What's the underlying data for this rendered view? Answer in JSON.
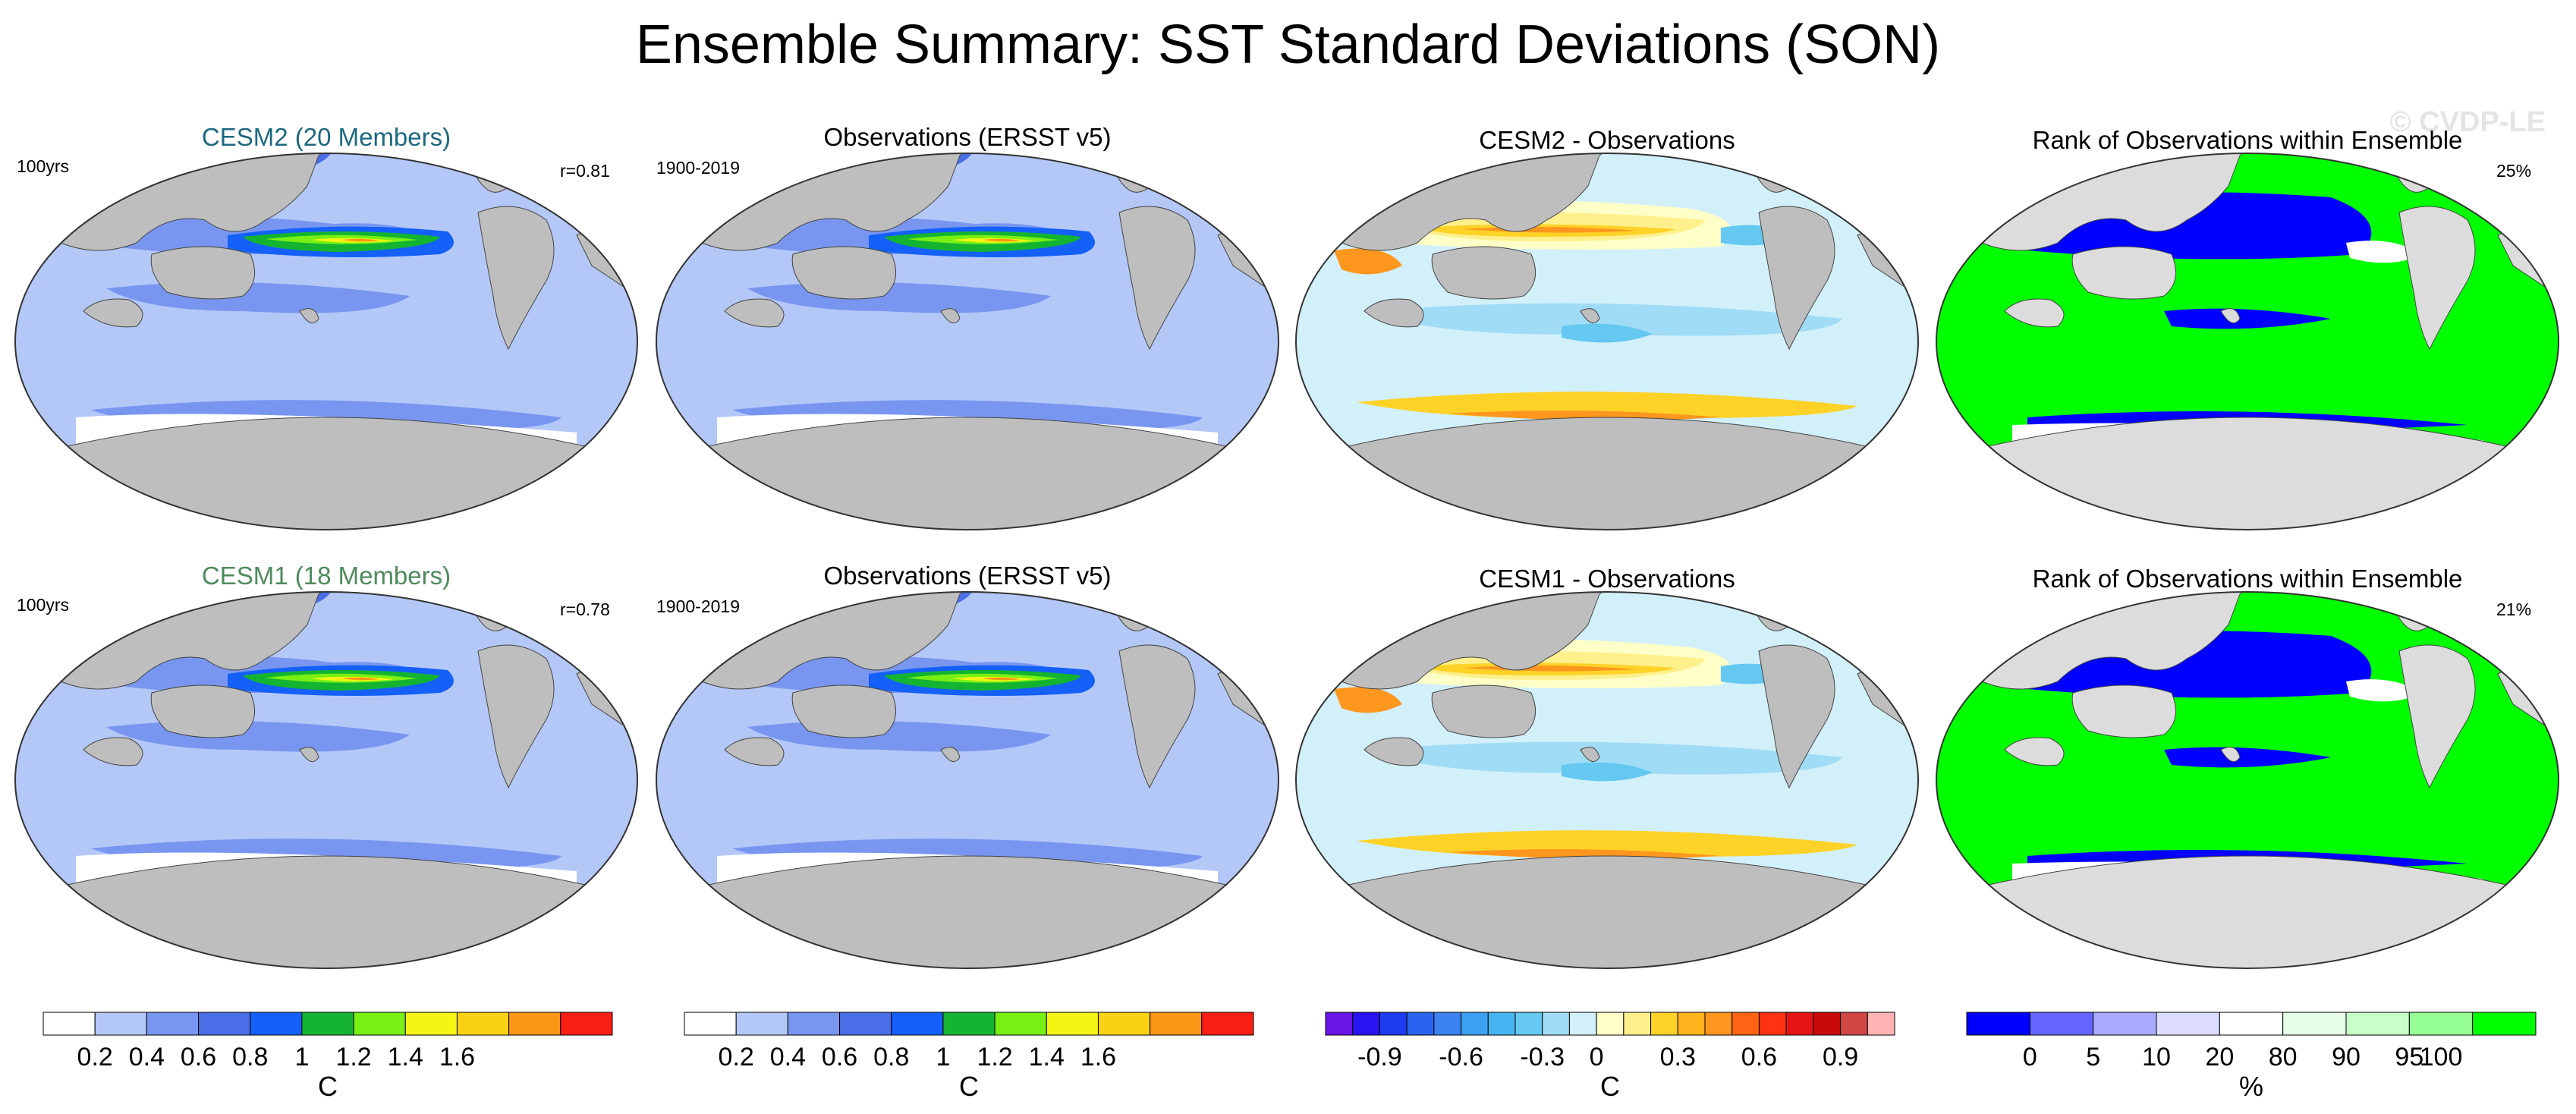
{
  "title": "Ensemble Summary: SST Standard Deviations (SON)",
  "watermark": "© CVDP-LE",
  "rows": [
    {
      "model_title": "CESM2 (20 Members)",
      "model_color": "#1c6880",
      "model_period": "100yrs",
      "pattern_corr": "r=0.81",
      "obs_title": "Observations (ERSST v5)",
      "obs_period": "1900-2019",
      "diff_title": "CESM2 - Observations",
      "rank_title": "Rank of Observations within Ensemble",
      "rank_percent": "25%"
    },
    {
      "model_title": "CESM1 (18 Members)",
      "model_color": "#4e8a5c",
      "model_period": "100yrs",
      "pattern_corr": "r=0.78",
      "obs_title": "Observations (ERSST v5)",
      "obs_period": "1900-2019",
      "diff_title": "CESM1 - Observations",
      "rank_title": "Rank of Observations within Ensemble",
      "rank_percent": "21%"
    }
  ],
  "colorbars": [
    {
      "unit": "C",
      "colors": [
        "#ffffff",
        "#b4c8f8",
        "#7896f0",
        "#4a6ee8",
        "#1460f8",
        "#14b432",
        "#78f014",
        "#f5f514",
        "#fad214",
        "#fa9614",
        "#fa1e14"
      ],
      "levels": [
        0.2,
        0.4,
        0.6,
        0.8,
        1,
        1.2,
        1.4,
        1.6
      ],
      "tick_labels": [
        "0.2",
        "0.4",
        "0.6",
        "0.8",
        "1",
        "1.2",
        "1.4",
        "1.6"
      ]
    },
    {
      "unit": "C",
      "colors": [
        "#ffffff",
        "#b4c8f8",
        "#7896f0",
        "#4a6ee8",
        "#1460f8",
        "#14b432",
        "#78f014",
        "#f5f514",
        "#fad214",
        "#fa9614",
        "#fa1e14"
      ],
      "levels": [
        0.2,
        0.4,
        0.6,
        0.8,
        1,
        1.2,
        1.4,
        1.6
      ],
      "tick_labels": [
        "0.2",
        "0.4",
        "0.6",
        "0.8",
        "1",
        "1.2",
        "1.4",
        "1.6"
      ]
    },
    {
      "unit": "C",
      "colors": [
        "#6a14e6",
        "#2814f0",
        "#1e3cf0",
        "#2864f0",
        "#3c82f0",
        "#3ca0f0",
        "#46b4f0",
        "#64c8f0",
        "#a0dcf5",
        "#d2f0fa",
        "#ffffc8",
        "#fff08c",
        "#ffd228",
        "#ffb41e",
        "#ff961e",
        "#ff6414",
        "#ff3214",
        "#e61414",
        "#c80a0a",
        "#d24646",
        "#ffb4b4"
      ],
      "levels": [
        -0.9,
        -0.6,
        -0.3,
        0,
        0.3,
        0.6,
        0.9
      ],
      "tick_labels": [
        "-0.9",
        "-0.6",
        "-0.3",
        "0",
        "0.3",
        "0.6",
        "0.9"
      ]
    },
    {
      "unit": "%",
      "colors": [
        "#0000ff",
        "#6464ff",
        "#aaaaff",
        "#dcdcff",
        "#ffffff",
        "#e6ffe6",
        "#c8ffc8",
        "#96ff96",
        "#00ff00"
      ],
      "levels": [
        0,
        5,
        10,
        20,
        80,
        90,
        95,
        100
      ],
      "tick_labels": [
        "0",
        "5",
        "10",
        "20",
        "80",
        "90",
        "95",
        "100"
      ]
    }
  ]
}
